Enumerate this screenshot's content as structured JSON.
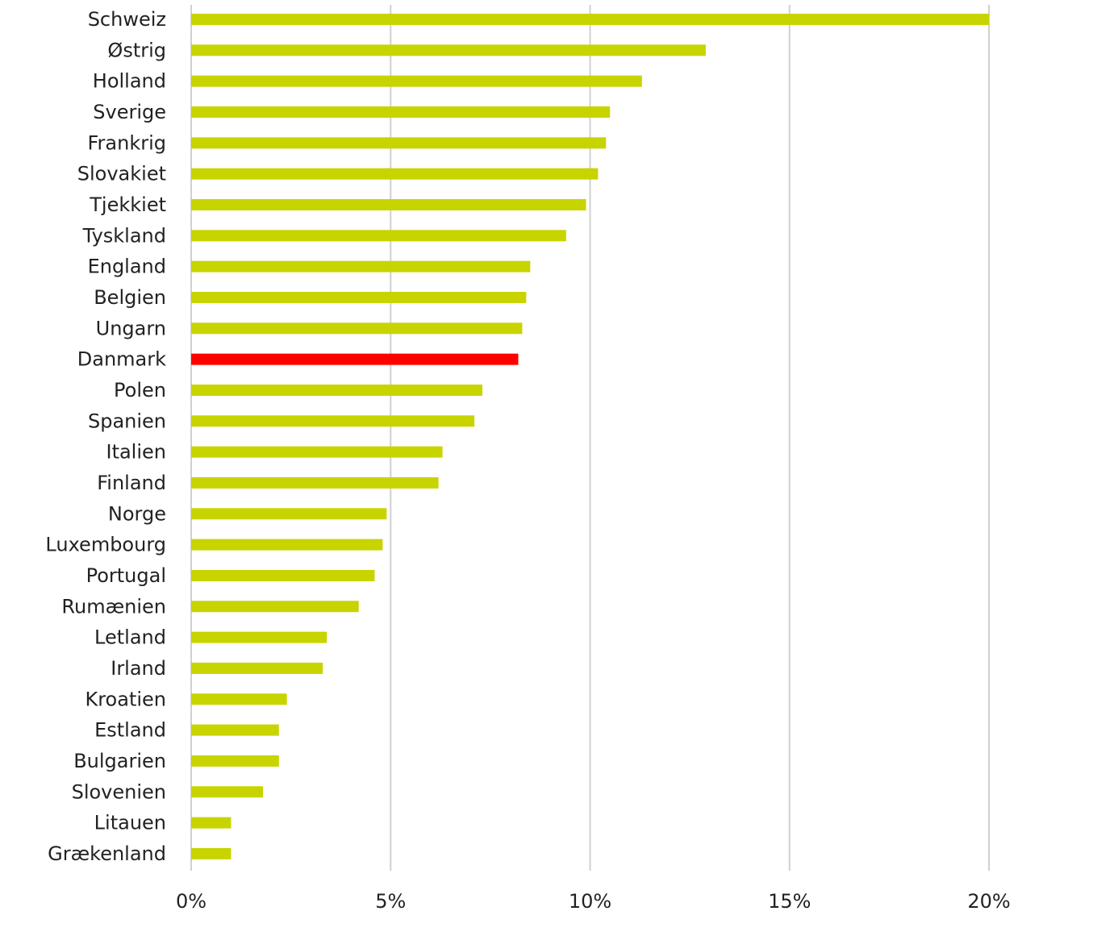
{
  "chart_data": {
    "type": "bar",
    "orientation": "horizontal",
    "categories": [
      "Schweiz",
      "Østrig",
      "Holland",
      "Sverige",
      "Frankrig",
      "Slovakiet",
      "Tjekkiet",
      "Tyskland",
      "England",
      "Belgien",
      "Ungarn",
      "Danmark",
      "Polen",
      "Spanien",
      "Italien",
      "Finland",
      "Norge",
      "Luxembourg",
      "Portugal",
      "Rumænien",
      "Letland",
      "Irland",
      "Kroatien",
      "Estland",
      "Bulgarien",
      "Slovenien",
      "Litauen",
      "Grækenland"
    ],
    "values": [
      0.2,
      0.129,
      0.113,
      0.105,
      0.104,
      0.102,
      0.099,
      0.094,
      0.085,
      0.084,
      0.083,
      0.082,
      0.073,
      0.071,
      0.063,
      0.062,
      0.049,
      0.048,
      0.046,
      0.042,
      0.034,
      0.033,
      0.024,
      0.022,
      0.022,
      0.018,
      0.01,
      0.01
    ],
    "highlight": "Danmark",
    "xlim": [
      0,
      0.2
    ],
    "xticks": [
      0,
      0.05,
      0.1,
      0.15,
      0.2
    ],
    "xtick_labels": [
      "0%",
      "5%",
      "10%",
      "15%",
      "20%"
    ],
    "grid": true,
    "colors": {
      "bar": "#c8d400",
      "highlight": "#ff0000",
      "grid": "#d0d0d0"
    }
  }
}
